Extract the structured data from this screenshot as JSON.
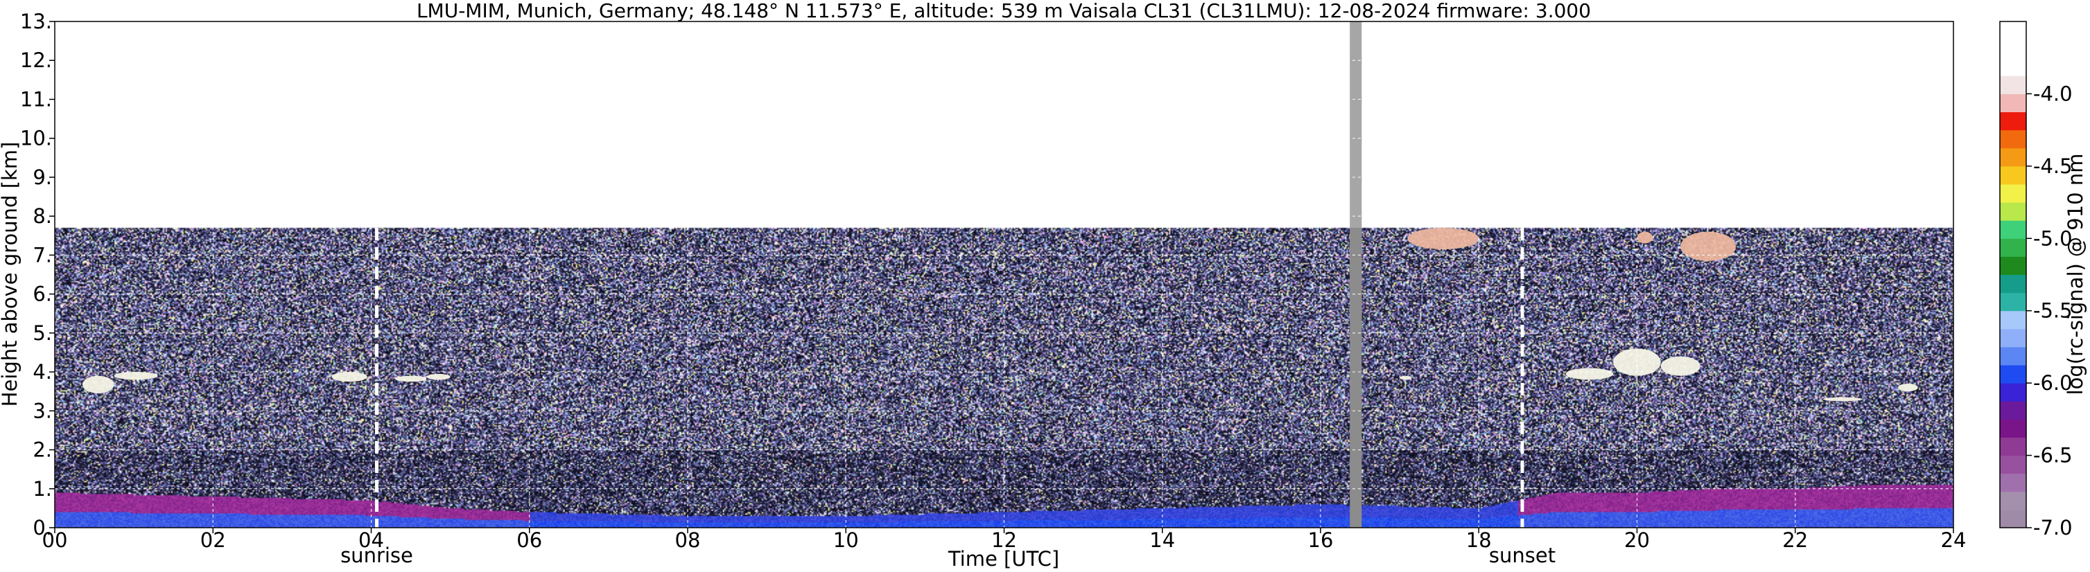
{
  "chart_data": {
    "type": "heatmap",
    "title": "LMU-MIM, Munich, Germany; 48.148° N 11.573° E, altitude: 539 m    Vaisala CL31 (CL31LMU): 12-08-2024    firmware: 3.000",
    "xlabel": "Time [UTC]",
    "ylabel": "Height above ground [km]",
    "xlim": [
      0,
      24
    ],
    "ylim": [
      0,
      13
    ],
    "x_ticks": [
      0,
      2,
      4,
      6,
      8,
      10,
      12,
      14,
      16,
      18,
      20,
      22,
      24
    ],
    "x_tick_labels": [
      "00",
      "02",
      "04",
      "06",
      "08",
      "10",
      "12",
      "14",
      "16",
      "18",
      "20",
      "22",
      "24"
    ],
    "y_ticks": [
      0,
      1,
      2,
      3,
      4,
      5,
      6,
      7,
      8,
      9,
      10,
      11,
      12,
      13
    ],
    "y_tick_labels": [
      "0.",
      "1.",
      "2.",
      "3.",
      "4.",
      "5.",
      "6.",
      "7.",
      "8.",
      "9.",
      "10.",
      "11.",
      "12.",
      "13."
    ],
    "grid": true,
    "measurement_top_km": 7.7,
    "data_gap": {
      "start": 16.37,
      "end": 16.52,
      "color": "#a6a6a6"
    },
    "annotations": [
      {
        "label": "sunrise",
        "time": 4.07
      },
      {
        "label": "sunset",
        "time": 18.55
      }
    ],
    "boundary_layer_km": [
      [
        0,
        0.9
      ],
      [
        1,
        0.85
      ],
      [
        2,
        0.8
      ],
      [
        3,
        0.75
      ],
      [
        4,
        0.7
      ],
      [
        5,
        0.5
      ],
      [
        6,
        0.4
      ],
      [
        7,
        0.35
      ],
      [
        8,
        0.3
      ],
      [
        9,
        0.3
      ],
      [
        10,
        0.3
      ],
      [
        11,
        0.35
      ],
      [
        12,
        0.4
      ],
      [
        13,
        0.45
      ],
      [
        14,
        0.5
      ],
      [
        15,
        0.55
      ],
      [
        16,
        0.6
      ],
      [
        17,
        0.55
      ],
      [
        18,
        0.5
      ],
      [
        19,
        0.9
      ],
      [
        20,
        0.9
      ],
      [
        21,
        1.0
      ],
      [
        22,
        1.0
      ],
      [
        23,
        1.1
      ],
      [
        24,
        1.1
      ]
    ],
    "clouds": [
      {
        "t": [
          0.35,
          0.75
        ],
        "h": [
          3.45,
          3.9
        ]
      },
      {
        "t": [
          0.75,
          1.3
        ],
        "h": [
          3.8,
          4.0
        ]
      },
      {
        "t": [
          3.5,
          3.95
        ],
        "h": [
          3.75,
          4.0
        ]
      },
      {
        "t": [
          4.3,
          4.7
        ],
        "h": [
          3.75,
          3.9
        ]
      },
      {
        "t": [
          4.7,
          5.0
        ],
        "h": [
          3.8,
          3.95
        ]
      },
      {
        "t": [
          17.0,
          17.15
        ],
        "h": [
          3.8,
          3.9
        ]
      },
      {
        "t": [
          19.1,
          19.7
        ],
        "h": [
          3.8,
          4.1
        ]
      },
      {
        "t": [
          19.7,
          20.3
        ],
        "h": [
          3.9,
          4.6
        ]
      },
      {
        "t": [
          20.3,
          20.8
        ],
        "h": [
          3.9,
          4.4
        ]
      },
      {
        "t": [
          22.35,
          22.85
        ],
        "h": [
          3.25,
          3.35
        ]
      },
      {
        "t": [
          23.3,
          23.55
        ],
        "h": [
          3.5,
          3.7
        ]
      },
      {
        "t": [
          17.1,
          18.0
        ],
        "h": [
          7.15,
          7.7
        ]
      },
      {
        "t": [
          20.55,
          21.25
        ],
        "h": [
          6.85,
          7.6
        ]
      },
      {
        "t": [
          20.0,
          20.2
        ],
        "h": [
          7.3,
          7.6
        ]
      }
    ],
    "colorbar": {
      "label": "log(rc-signal) @ 910 nm",
      "range": [
        -7.0,
        -4.0
      ],
      "ticks": [
        -4.0,
        -4.5,
        -5.0,
        -5.5,
        -6.0,
        -6.5,
        -7.0
      ],
      "tick_labels": [
        "-4.0",
        "-4.5",
        "-5.0",
        "-5.5",
        "-6.0",
        "-6.5",
        "-7.0"
      ],
      "levels": [
        {
          "from": -7.0,
          "to": -6.875,
          "color": "#9f8aa8"
        },
        {
          "from": -6.875,
          "to": -6.75,
          "color": "#a48fad"
        },
        {
          "from": -6.75,
          "to": -6.625,
          "color": "#a070ad"
        },
        {
          "from": -6.625,
          "to": -6.5,
          "color": "#98519e"
        },
        {
          "from": -6.5,
          "to": -6.375,
          "color": "#8f3a94"
        },
        {
          "from": -6.375,
          "to": -6.25,
          "color": "#7a1489"
        },
        {
          "from": -6.25,
          "to": -6.125,
          "color": "#6a1a9a"
        },
        {
          "from": -6.125,
          "to": -6.0,
          "color": "#3a22d6"
        },
        {
          "from": -6.0,
          "to": -5.875,
          "color": "#1e4cf2"
        },
        {
          "from": -5.875,
          "to": -5.75,
          "color": "#5b86f4"
        },
        {
          "from": -5.75,
          "to": -5.625,
          "color": "#8fb0f8"
        },
        {
          "from": -5.625,
          "to": -5.5,
          "color": "#a6c8fa"
        },
        {
          "from": -5.5,
          "to": -5.375,
          "color": "#2db3a6"
        },
        {
          "from": -5.375,
          "to": -5.25,
          "color": "#169c8a"
        },
        {
          "from": -5.25,
          "to": -5.125,
          "color": "#1e8a1e"
        },
        {
          "from": -5.125,
          "to": -5.0,
          "color": "#31b24a"
        },
        {
          "from": -5.0,
          "to": -4.875,
          "color": "#3fd07a"
        },
        {
          "from": -4.875,
          "to": -4.75,
          "color": "#b8e84a"
        },
        {
          "from": -4.75,
          "to": -4.625,
          "color": "#f1f14a"
        },
        {
          "from": -4.625,
          "to": -4.5,
          "color": "#f8c81e"
        },
        {
          "from": -4.5,
          "to": -4.375,
          "color": "#f59a14"
        },
        {
          "from": -4.375,
          "to": -4.25,
          "color": "#f26a0e"
        },
        {
          "from": -4.25,
          "to": -4.125,
          "color": "#ee1c0c"
        },
        {
          "from": -4.125,
          "to": -4.0,
          "color": "#f2b8b8"
        }
      ],
      "extra_levels": [
        {
          "from": -4.0,
          "to": -3.875,
          "color": "#f2e4e4"
        },
        {
          "from": -3.875,
          "to": -3.5,
          "color": "#ffffff"
        }
      ]
    }
  }
}
